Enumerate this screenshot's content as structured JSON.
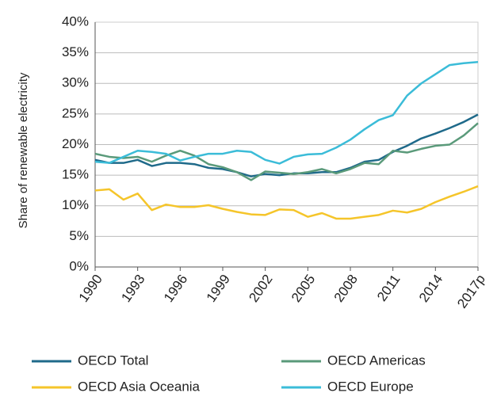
{
  "chart_data": {
    "type": "line",
    "y_label": "Share of renewable electricity",
    "x": [
      1990,
      1991,
      1992,
      1993,
      1994,
      1995,
      1996,
      1997,
      1998,
      1999,
      2000,
      2001,
      2002,
      2003,
      2004,
      2005,
      2006,
      2007,
      2008,
      2009,
      2010,
      2011,
      2012,
      2013,
      2014,
      2015,
      2016,
      2017
    ],
    "series": [
      {
        "name": "OECD Total",
        "color": "#1f6a8a",
        "values": [
          17.5,
          17.0,
          17.0,
          17.5,
          16.5,
          17.0,
          17.0,
          16.8,
          16.2,
          16.0,
          15.5,
          14.8,
          15.2,
          15.0,
          15.3,
          15.3,
          15.5,
          15.5,
          16.2,
          17.2,
          17.5,
          18.8,
          19.8,
          21.0,
          21.8,
          22.7,
          23.7,
          24.9
        ]
      },
      {
        "name": "OECD Americas",
        "color": "#5a9a7a",
        "values": [
          18.5,
          18.0,
          17.8,
          18.0,
          17.2,
          18.2,
          19.0,
          18.2,
          16.8,
          16.3,
          15.5,
          14.2,
          15.6,
          15.4,
          15.2,
          15.5,
          16.0,
          15.3,
          16.0,
          17.0,
          16.8,
          19.0,
          18.7,
          19.3,
          19.8,
          20.0,
          21.5,
          23.5
        ]
      },
      {
        "name": "OECD Asia Oceania",
        "color": "#f5c52a",
        "values": [
          12.5,
          12.7,
          11.0,
          12.0,
          9.3,
          10.2,
          9.8,
          9.8,
          10.1,
          9.5,
          9.0,
          8.6,
          8.5,
          9.4,
          9.3,
          8.2,
          8.8,
          7.9,
          7.9,
          8.2,
          8.5,
          9.2,
          8.9,
          9.5,
          10.6,
          11.5,
          12.3,
          13.2
        ]
      },
      {
        "name": "OECD Europe",
        "color": "#3bbcd8",
        "values": [
          17.2,
          17.0,
          18.0,
          19.0,
          18.8,
          18.5,
          17.4,
          18.0,
          18.5,
          18.5,
          19.0,
          18.8,
          17.5,
          16.9,
          18.0,
          18.4,
          18.5,
          19.5,
          20.8,
          22.5,
          24.0,
          24.8,
          28.0,
          30.0,
          31.5,
          33.0,
          33.3,
          33.5
        ]
      }
    ],
    "xlim": [
      1990,
      2017
    ],
    "xticks": [
      1990,
      1993,
      1996,
      1999,
      2002,
      2005,
      2008,
      2011,
      2014,
      {
        "value": 2017,
        "label": "2017p"
      }
    ],
    "ylim": [
      0,
      40
    ],
    "yticks": [
      {
        "value": 0,
        "label": "0%"
      },
      {
        "value": 5,
        "label": "5%"
      },
      {
        "value": 10,
        "label": "10%"
      },
      {
        "value": 15,
        "label": "15%"
      },
      {
        "value": 20,
        "label": "20%"
      },
      {
        "value": 25,
        "label": "25%"
      },
      {
        "value": 30,
        "label": "30%"
      },
      {
        "value": 35,
        "label": "35%"
      },
      {
        "value": 40,
        "label": "40%"
      }
    ],
    "grid": true
  }
}
